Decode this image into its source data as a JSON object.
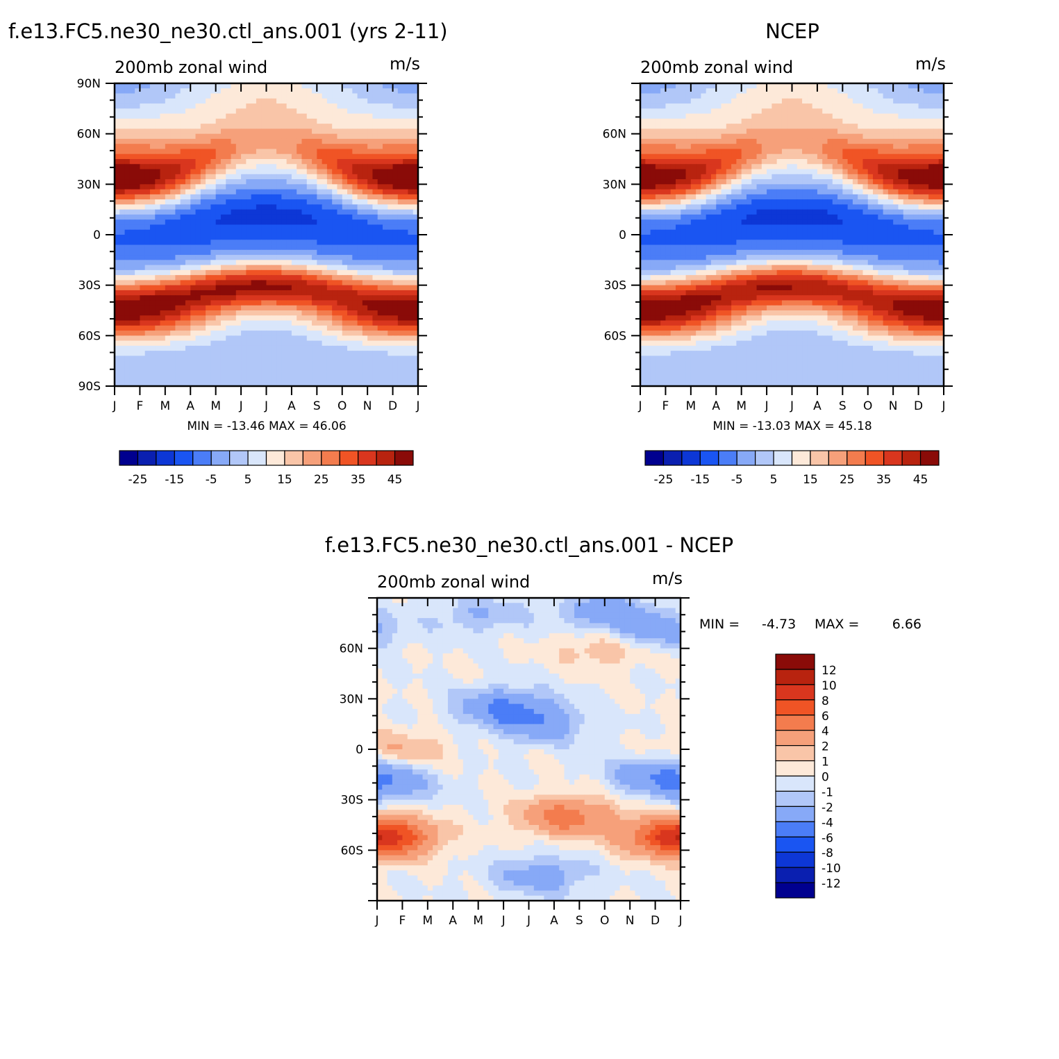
{
  "chart_data": [
    {
      "type": "heatmap",
      "title": "f.e13.FC5.ne30_ne30.ctl_ans.001 (yrs 2-11)",
      "subtitle": "200mb zonal wind",
      "units": "m/s",
      "x_ticks": [
        "J",
        "F",
        "M",
        "A",
        "M",
        "J",
        "J",
        "A",
        "S",
        "O",
        "N",
        "D",
        "J"
      ],
      "y_ticks": [
        "90N",
        "60N",
        "30N",
        "0",
        "30S",
        "60S",
        "90S"
      ],
      "ylim": [
        -90,
        90
      ],
      "stats": "MIN = -13.46 MAX = 46.06",
      "colorbar_labels": [
        "-25",
        "-15",
        "-5",
        "5",
        "15",
        "25",
        "35",
        "45"
      ],
      "features": [
        {
          "lat": 30,
          "month": 0.5,
          "value": 46
        },
        {
          "lat": 30,
          "month": 11.5,
          "value": 41
        },
        {
          "lat": -30,
          "month": 7,
          "value": 45
        },
        {
          "lat": -50,
          "month": 1.5,
          "value": 33
        },
        {
          "lat": 5,
          "month": 7,
          "value": -13
        },
        {
          "lat": 85,
          "month": 6,
          "value": 6
        }
      ]
    },
    {
      "type": "heatmap",
      "title": "NCEP",
      "subtitle": "200mb zonal wind",
      "units": "m/s",
      "x_ticks": [
        "J",
        "F",
        "M",
        "A",
        "M",
        "J",
        "J",
        "A",
        "S",
        "O",
        "N",
        "D",
        "J"
      ],
      "y_ticks": [
        "60N",
        "30N",
        "0",
        "30S",
        "60S"
      ],
      "ylim": [
        -90,
        90
      ],
      "stats": "MIN = -13.03 MAX = 45.18",
      "colorbar_labels": [
        "-25",
        "-15",
        "-5",
        "5",
        "15",
        "25",
        "35",
        "45"
      ],
      "features": [
        {
          "lat": 30,
          "month": 0.5,
          "value": 45
        },
        {
          "lat": 30,
          "month": 11.5,
          "value": 40
        },
        {
          "lat": -30,
          "month": 7,
          "value": 44
        },
        {
          "lat": -50,
          "month": 1.5,
          "value": 30
        },
        {
          "lat": 5,
          "month": 7,
          "value": -12
        }
      ]
    },
    {
      "type": "heatmap",
      "title": "f.e13.FC5.ne30_ne30.ctl_ans.001 - NCEP",
      "subtitle": "200mb zonal wind",
      "units": "m/s",
      "x_ticks": [
        "J",
        "F",
        "M",
        "A",
        "M",
        "J",
        "J",
        "A",
        "S",
        "O",
        "N",
        "D",
        "J"
      ],
      "y_ticks": [
        "60N",
        "30N",
        "0",
        "30S",
        "60S"
      ],
      "ylim": [
        -90,
        90
      ],
      "stats_min_label": "MIN =",
      "stats_min_value": "-4.73",
      "stats_max_label": "MAX =",
      "stats_max_value": "6.66",
      "colorbar_labels": [
        "12",
        "10",
        "8",
        "6",
        "4",
        "2",
        "1",
        "0",
        "-1",
        "-2",
        "-4",
        "-6",
        "-8",
        "-10",
        "-12"
      ],
      "features": [
        {
          "lat": -52,
          "month": 0.5,
          "value": 6
        },
        {
          "lat": -52,
          "month": 11.5,
          "value": 5
        },
        {
          "lat": -40,
          "month": 7.5,
          "value": 5
        },
        {
          "lat": 25,
          "month": 5,
          "value": -4
        },
        {
          "lat": 15,
          "month": 6.5,
          "value": -3
        },
        {
          "lat": -20,
          "month": 0.5,
          "value": -3
        },
        {
          "lat": -15,
          "month": 11,
          "value": -3
        },
        {
          "lat": -75,
          "month": 6.5,
          "value": -3
        },
        {
          "lat": 60,
          "month": 9,
          "value": 2
        },
        {
          "lat": 0,
          "month": 1,
          "value": 2
        },
        {
          "lat": 80,
          "month": 4,
          "value": -2
        },
        {
          "lat": 82,
          "month": 9,
          "value": -3
        },
        {
          "lat": 70,
          "month": 11,
          "value": -3
        }
      ]
    }
  ],
  "colors": {
    "main_scale": [
      "#00008f",
      "#0a1fb0",
      "#0d37d6",
      "#1a55f2",
      "#4b7df7",
      "#87a9f7",
      "#b1c7f8",
      "#d9e6fb",
      "#fde9d9",
      "#f9c5a8",
      "#f6a07a",
      "#f37c4e",
      "#f05425",
      "#d9361e",
      "#b8230f",
      "#8a0b08"
    ],
    "diff_scale": [
      "#8a0b08",
      "#b8230f",
      "#d9361e",
      "#f05425",
      "#f37c4e",
      "#f6a07a",
      "#f9c5a8",
      "#fde9d9",
      "#d9e6fb",
      "#b1c7f8",
      "#87a9f7",
      "#4b7df7",
      "#1a55f2",
      "#0d37d6",
      "#0a1fb0",
      "#00008f"
    ]
  }
}
